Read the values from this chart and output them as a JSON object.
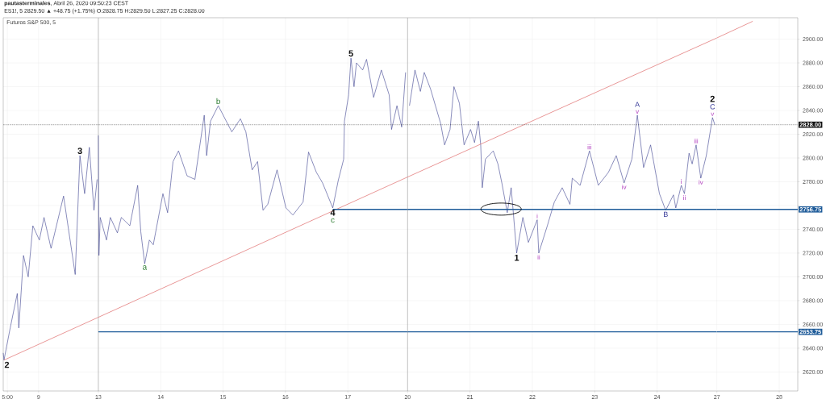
{
  "chart_data": [
    {
      "type": "line",
      "title": "**pautasterminales**, Abril 26, 2020 09:50:23 CEST",
      "subtitle": "ES1!, 5 2829.50 ▲ +48.75 (+1.75%) O:2828.75 H:2829.50 L:2827.25 C:2828.00",
      "annotations": [
        "Futuros S&P 500, 5",
        {
          "text": "2",
          "x": "2020-04-08T10:42",
          "y": 2630
        },
        {
          "text": "3",
          "x": "2020-04-09T15:55",
          "y": 2802
        }
      ],
      "series": [
        {
          "color": "#3b3f8f",
          "x": [
            "2020-04-08T10:24",
            "2020-04-08T10:42",
            "2020-04-08T13:05",
            "2020-04-08T15:48",
            "2020-04-08T16:24",
            "2020-04-08T18:12",
            "2020-04-08T20:01",
            "2020-04-08T21:48",
            "2020-04-09T00:18",
            "2020-04-09T02:06",
            "2020-04-09T04:48",
            "2020-04-09T09:37",
            "2020-04-09T14:06",
            "2020-04-09T15:55",
            "2020-04-09T17:43",
            "2020-04-09T19:32",
            "2020-04-09T21:19",
            "2020-04-09T22:31"
          ],
          "values": [
            2636,
            2630,
            2657,
            2686,
            2657,
            2718,
            2700,
            2743,
            2731,
            2750,
            2724,
            2768,
            2702,
            2802,
            2770,
            2809,
            2756,
            2782
          ]
        },
        {
          "type": "line",
          "color": "#e06c6c",
          "x": [
            "2020-04-08T10:42",
            "2020-04-09T23:00"
          ],
          "values": [
            2630,
            2666
          ]
        }
      ],
      "xlim": [
        "2020-04-08T10:24",
        "2020-04-09T23:00"
      ],
      "xticks": [
        {
          "value": "2020-04-08T12:00",
          "label": "5:00"
        },
        {
          "value": "2020-04-09",
          "label": "9"
        }
      ],
      "ylim": [
        2604,
        2918
      ],
      "yticks": [
        2620,
        2640,
        2660,
        2680,
        2700,
        2720,
        2740,
        2760,
        2780,
        2800,
        2820,
        2840,
        2860,
        2880,
        2900
      ],
      "tick_labels": "x",
      "ref_lines": [
        {
          "axis": "y",
          "value": 2828,
          "color": "#111111",
          "line_style": "dotted"
        }
      ],
      "grid": true
    },
    {
      "type": "line",
      "annotations": [
        {
          "text": "a",
          "x": "2020-04-13T17:50",
          "y": 2711
        },
        {
          "text": "b",
          "x": "2020-04-14T22:09",
          "y": 2844
        },
        {
          "text": "4",
          "x": "2020-04-16T18:12",
          "y": 2758
        },
        {
          "text": "c",
          "x": "2020-04-16T18:12",
          "y": 2758
        },
        {
          "text": "5",
          "x": "2020-04-17T01:12",
          "y": 2884
        }
      ],
      "series": [
        {
          "color": "#3b3f8f",
          "x": [
            "2020-04-13T00:00",
            "2020-04-13T00:14",
            "2020-04-13T00:43",
            "2020-04-13T03:08",
            "2020-04-13T04:37",
            "2020-04-13T07:20",
            "2020-04-13T08:50",
            "2020-04-13T12:07",
            "2020-04-13T15:08",
            "2020-04-13T16:20",
            "2020-04-13T17:50",
            "2020-04-13T19:38",
            "2020-04-13T21:08",
            "2020-04-14T00:51",
            "2020-04-14T02:39",
            "2020-04-14T04:44",
            "2020-04-14T06:51",
            "2020-04-14T10:09",
            "2020-04-14T13:09",
            "2020-04-14T16:45",
            "2020-04-14T17:40",
            "2020-04-14T19:10",
            "2020-04-14T22:09",
            "2020-04-15T03:21",
            "2020-04-15T06:40",
            "2020-04-15T08:46",
            "2020-04-15T11:11",
            "2020-04-15T13:16",
            "2020-04-15T15:22",
            "2020-04-15T17:11",
            "2020-04-15T20:46",
            "2020-04-16T00:11",
            "2020-04-16T02:52",
            "2020-04-16T06:47",
            "2020-04-16T08:53",
            "2020-04-16T11:53",
            "2020-04-16T14:17",
            "2020-04-16T18:12",
            "2020-04-16T20:18",
            "2020-04-16T22:24",
            "2020-04-16T22:42",
            "2020-04-17T00:18",
            "2020-04-17T01:12",
            "2020-04-17T02:23",
            "2020-04-17T03:19",
            "2020-04-17T05:42",
            "2020-04-17T07:12",
            "2020-04-17T09:55",
            "2020-04-17T12:54",
            "2020-04-17T15:55",
            "2020-04-17T16:49",
            "2020-04-17T18:54",
            "2020-04-17T20:43",
            "2020-04-17T22:13"
          ],
          "values": [
            2819,
            2718,
            2750,
            2731,
            2750,
            2737,
            2750,
            2743,
            2777,
            2738,
            2711,
            2731,
            2727,
            2770,
            2754,
            2797,
            2806,
            2785,
            2782,
            2836,
            2802,
            2831,
            2844,
            2822,
            2833,
            2822,
            2790,
            2797,
            2756,
            2761,
            2790,
            2758,
            2752,
            2763,
            2805,
            2788,
            2779,
            2758,
            2781,
            2799,
            2831,
            2853,
            2884,
            2860,
            2880,
            2874,
            2883,
            2851,
            2874,
            2853,
            2824,
            2844,
            2826,
            2872
          ]
        },
        {
          "type": "line",
          "color": "#e06c6c",
          "x": [
            "2020-04-13T00:00",
            "2020-04-17T23:00"
          ],
          "values": [
            2666,
            2784
          ]
        },
        {
          "type": "line",
          "color": "#1e5b99",
          "x": [
            "2020-04-16T18:12",
            "2020-04-17T23:00"
          ],
          "values": [
            2756.75,
            2756.75
          ]
        }
      ],
      "xlim": [
        "2020-04-13T00:00",
        "2020-04-17T23:00"
      ],
      "xticks": [
        {
          "value": "2020-04-13",
          "label": "13"
        },
        {
          "value": "2020-04-14",
          "label": "14"
        },
        {
          "value": "2020-04-15",
          "label": "15"
        },
        {
          "value": "2020-04-16",
          "label": "16"
        },
        {
          "value": "2020-04-17",
          "label": "17"
        }
      ],
      "ylim": [
        2604,
        2918
      ],
      "yticks": [
        2620,
        2640,
        2660,
        2680,
        2700,
        2720,
        2740,
        2760,
        2780,
        2800,
        2820,
        2840,
        2860,
        2880,
        2900
      ],
      "tick_labels": "x",
      "ref_lines": [
        {
          "axis": "y",
          "value": 2828,
          "color": "#111111",
          "line_style": "dotted"
        },
        {
          "axis": "y",
          "value": 2653.75,
          "color": "#1e5b99"
        }
      ],
      "grid": true
    },
    {
      "type": "line",
      "annotations": [
        {
          "text": "1",
          "x": "2020-04-21T17:58",
          "y": 2720
        },
        {
          "text": "i",
          "x": "2020-04-22T01:52",
          "y": 2748
        },
        {
          "text": "ii",
          "x": "2020-04-22T02:28",
          "y": 2720
        },
        {
          "text": "iii",
          "x": "2020-04-22T21:59",
          "y": 2806
        },
        {
          "text": "iv",
          "x": "2020-04-23T11:18",
          "y": 2779
        },
        {
          "text": "v",
          "x": "2020-04-23T16:24",
          "y": 2836
        },
        {
          "text": "A",
          "x": "2020-04-23T16:24",
          "y": 2836
        },
        {
          "text": "B",
          "x": "2020-04-24T03:19",
          "y": 2756
        },
        {
          "text": "i",
          "x": "2020-04-24T09:19",
          "y": 2777
        },
        {
          "text": "ii",
          "x": "2020-04-24T10:31",
          "y": 2770
        },
        {
          "text": "iii",
          "x": "2020-04-24T15:01",
          "y": 2811
        },
        {
          "text": "iv",
          "x": "2020-04-24T16:49",
          "y": 2783
        },
        {
          "text": "v",
          "x": "2020-04-24T21:19",
          "y": 2834
        },
        {
          "text": "C",
          "x": "2020-04-24T21:19",
          "y": 2834
        },
        {
          "text": "2",
          "x": "2020-04-24T21:19",
          "y": 2834
        }
      ],
      "series": [
        {
          "color": "#3b3f8f",
          "x": [
            "2020-04-20T00:43",
            "2020-04-20T02:50",
            "2020-04-20T04:55",
            "2020-04-20T06:25",
            "2020-04-20T08:50",
            "2020-04-20T12:43",
            "2020-04-20T14:14",
            "2020-04-20T16:20",
            "2020-04-20T17:50",
            "2020-04-20T19:56",
            "2020-04-20T21:44",
            "2020-04-21T00:14",
            "2020-04-21T01:45",
            "2020-04-21T03:15",
            "2020-04-21T04:08",
            "2020-04-21T04:44",
            "2020-04-21T05:56",
            "2020-04-21T08:57",
            "2020-04-21T10:45",
            "2020-04-21T12:16",
            "2020-04-21T14:21",
            "2020-04-21T15:51",
            "2020-04-21T16:45",
            "2020-04-21T17:58",
            "2020-04-21T20:21",
            "2020-04-21T22:28",
            "2020-04-22T01:52",
            "2020-04-22T02:28",
            "2020-04-22T05:46",
            "2020-04-22T08:28",
            "2020-04-22T11:29",
            "2020-04-22T14:28",
            "2020-04-22T15:22",
            "2020-04-22T18:23",
            "2020-04-22T21:59",
            "2020-04-23T01:23",
            "2020-04-23T05:17",
            "2020-04-23T08:17",
            "2020-04-23T11:18",
            "2020-04-23T14:17",
            "2020-04-23T16:24",
            "2020-04-23T18:48",
            "2020-04-23T21:30",
            "2020-04-24T00:54",
            "2020-04-24T03:19",
            "2020-04-24T06:18",
            "2020-04-24T07:12",
            "2020-04-24T09:19",
            "2020-04-24T10:31",
            "2020-04-24T12:18",
            "2020-04-24T13:30",
            "2020-04-24T15:01",
            "2020-04-24T16:49",
            "2020-04-24T18:56",
            "2020-04-24T21:19",
            "2020-04-24T22:13"
          ],
          "values": [
            2844,
            2874,
            2856,
            2872,
            2858,
            2829,
            2811,
            2824,
            2860,
            2846,
            2811,
            2824,
            2813,
            2831,
            2811,
            2775,
            2799,
            2806,
            2795,
            2779,
            2754,
            2775,
            2752,
            2720,
            2750,
            2729,
            2748,
            2720,
            2743,
            2763,
            2775,
            2761,
            2783,
            2777,
            2806,
            2777,
            2788,
            2802,
            2779,
            2799,
            2836,
            2792,
            2811,
            2770,
            2756,
            2769,
            2758,
            2777,
            2770,
            2804,
            2795,
            2811,
            2783,
            2802,
            2834,
            2828
          ]
        },
        {
          "type": "line",
          "color": "#e06c6c",
          "x": [
            "2020-04-20T00:00",
            "2020-04-24T23:00"
          ],
          "values": [
            2784,
            2901
          ]
        }
      ],
      "xlim": [
        "2020-04-20T00:00",
        "2020-04-24T23:00"
      ],
      "xticks": [
        {
          "value": "2020-04-20",
          "label": "20"
        },
        {
          "value": "2020-04-21",
          "label": "21"
        },
        {
          "value": "2020-04-22",
          "label": "22"
        },
        {
          "value": "2020-04-23",
          "label": "23"
        },
        {
          "value": "2020-04-24",
          "label": "24"
        }
      ],
      "ylim": [
        2604,
        2918
      ],
      "yticks": [
        2620,
        2640,
        2660,
        2680,
        2700,
        2720,
        2740,
        2760,
        2780,
        2800,
        2820,
        2840,
        2860,
        2880,
        2900
      ],
      "tick_labels": "x",
      "ref_lines": [
        {
          "axis": "y",
          "value": 2828,
          "color": "#111111",
          "line_style": "dotted"
        },
        {
          "axis": "y",
          "value": 2756.75,
          "color": "#1e5b99"
        },
        {
          "axis": "y",
          "value": 2653.75,
          "color": "#1e5b99"
        }
      ],
      "grid": true
    },
    {
      "type": "line",
      "series": [
        {
          "type": "line",
          "color": "#e06c6c",
          "x": [
            "2020-04-27T00:00",
            "2020-04-27T13:48"
          ],
          "values": [
            2901,
            2915
          ]
        }
      ],
      "xlim": [
        "2020-04-27T00:00",
        "2020-04-28T07:08"
      ],
      "xticks": [
        {
          "value": "2020-04-27",
          "label": "27"
        },
        {
          "value": "2020-04-28",
          "label": "28"
        }
      ],
      "ylim": [
        2604,
        2918
      ],
      "yticks": [
        {
          "value": 2620,
          "label": "2620.00"
        },
        {
          "value": 2640,
          "label": "2640.00"
        },
        {
          "value": 2660,
          "label": "2660.00"
        },
        {
          "value": 2680,
          "label": "2680.00"
        },
        {
          "value": 2700,
          "label": "2700.00"
        },
        {
          "value": 2720,
          "label": "2720.00"
        },
        {
          "value": 2740,
          "label": "2740.00"
        },
        {
          "value": 2760,
          "label": null
        },
        {
          "value": 2780,
          "label": "2780.00"
        },
        {
          "value": 2800,
          "label": "2800.00"
        },
        {
          "value": 2820,
          "label": "2820.00"
        },
        {
          "value": 2840,
          "label": "2840.00"
        },
        {
          "value": 2860,
          "label": "2860.00"
        },
        {
          "value": 2880,
          "label": "2880.00"
        },
        {
          "value": 2900,
          "label": "2900.00"
        }
      ],
      "ref_lines": [
        {
          "axis": "y",
          "value": 2828,
          "label": "2828.00",
          "color": "#111111",
          "line_style": "dotted"
        },
        {
          "axis": "y",
          "value": 2756.75,
          "label": "2756.75",
          "color": "#1e5b99"
        },
        {
          "axis": "y",
          "value": 2653.75,
          "label": "2653.75",
          "color": "#1e5b99"
        }
      ],
      "grid": true
    }
  ]
}
